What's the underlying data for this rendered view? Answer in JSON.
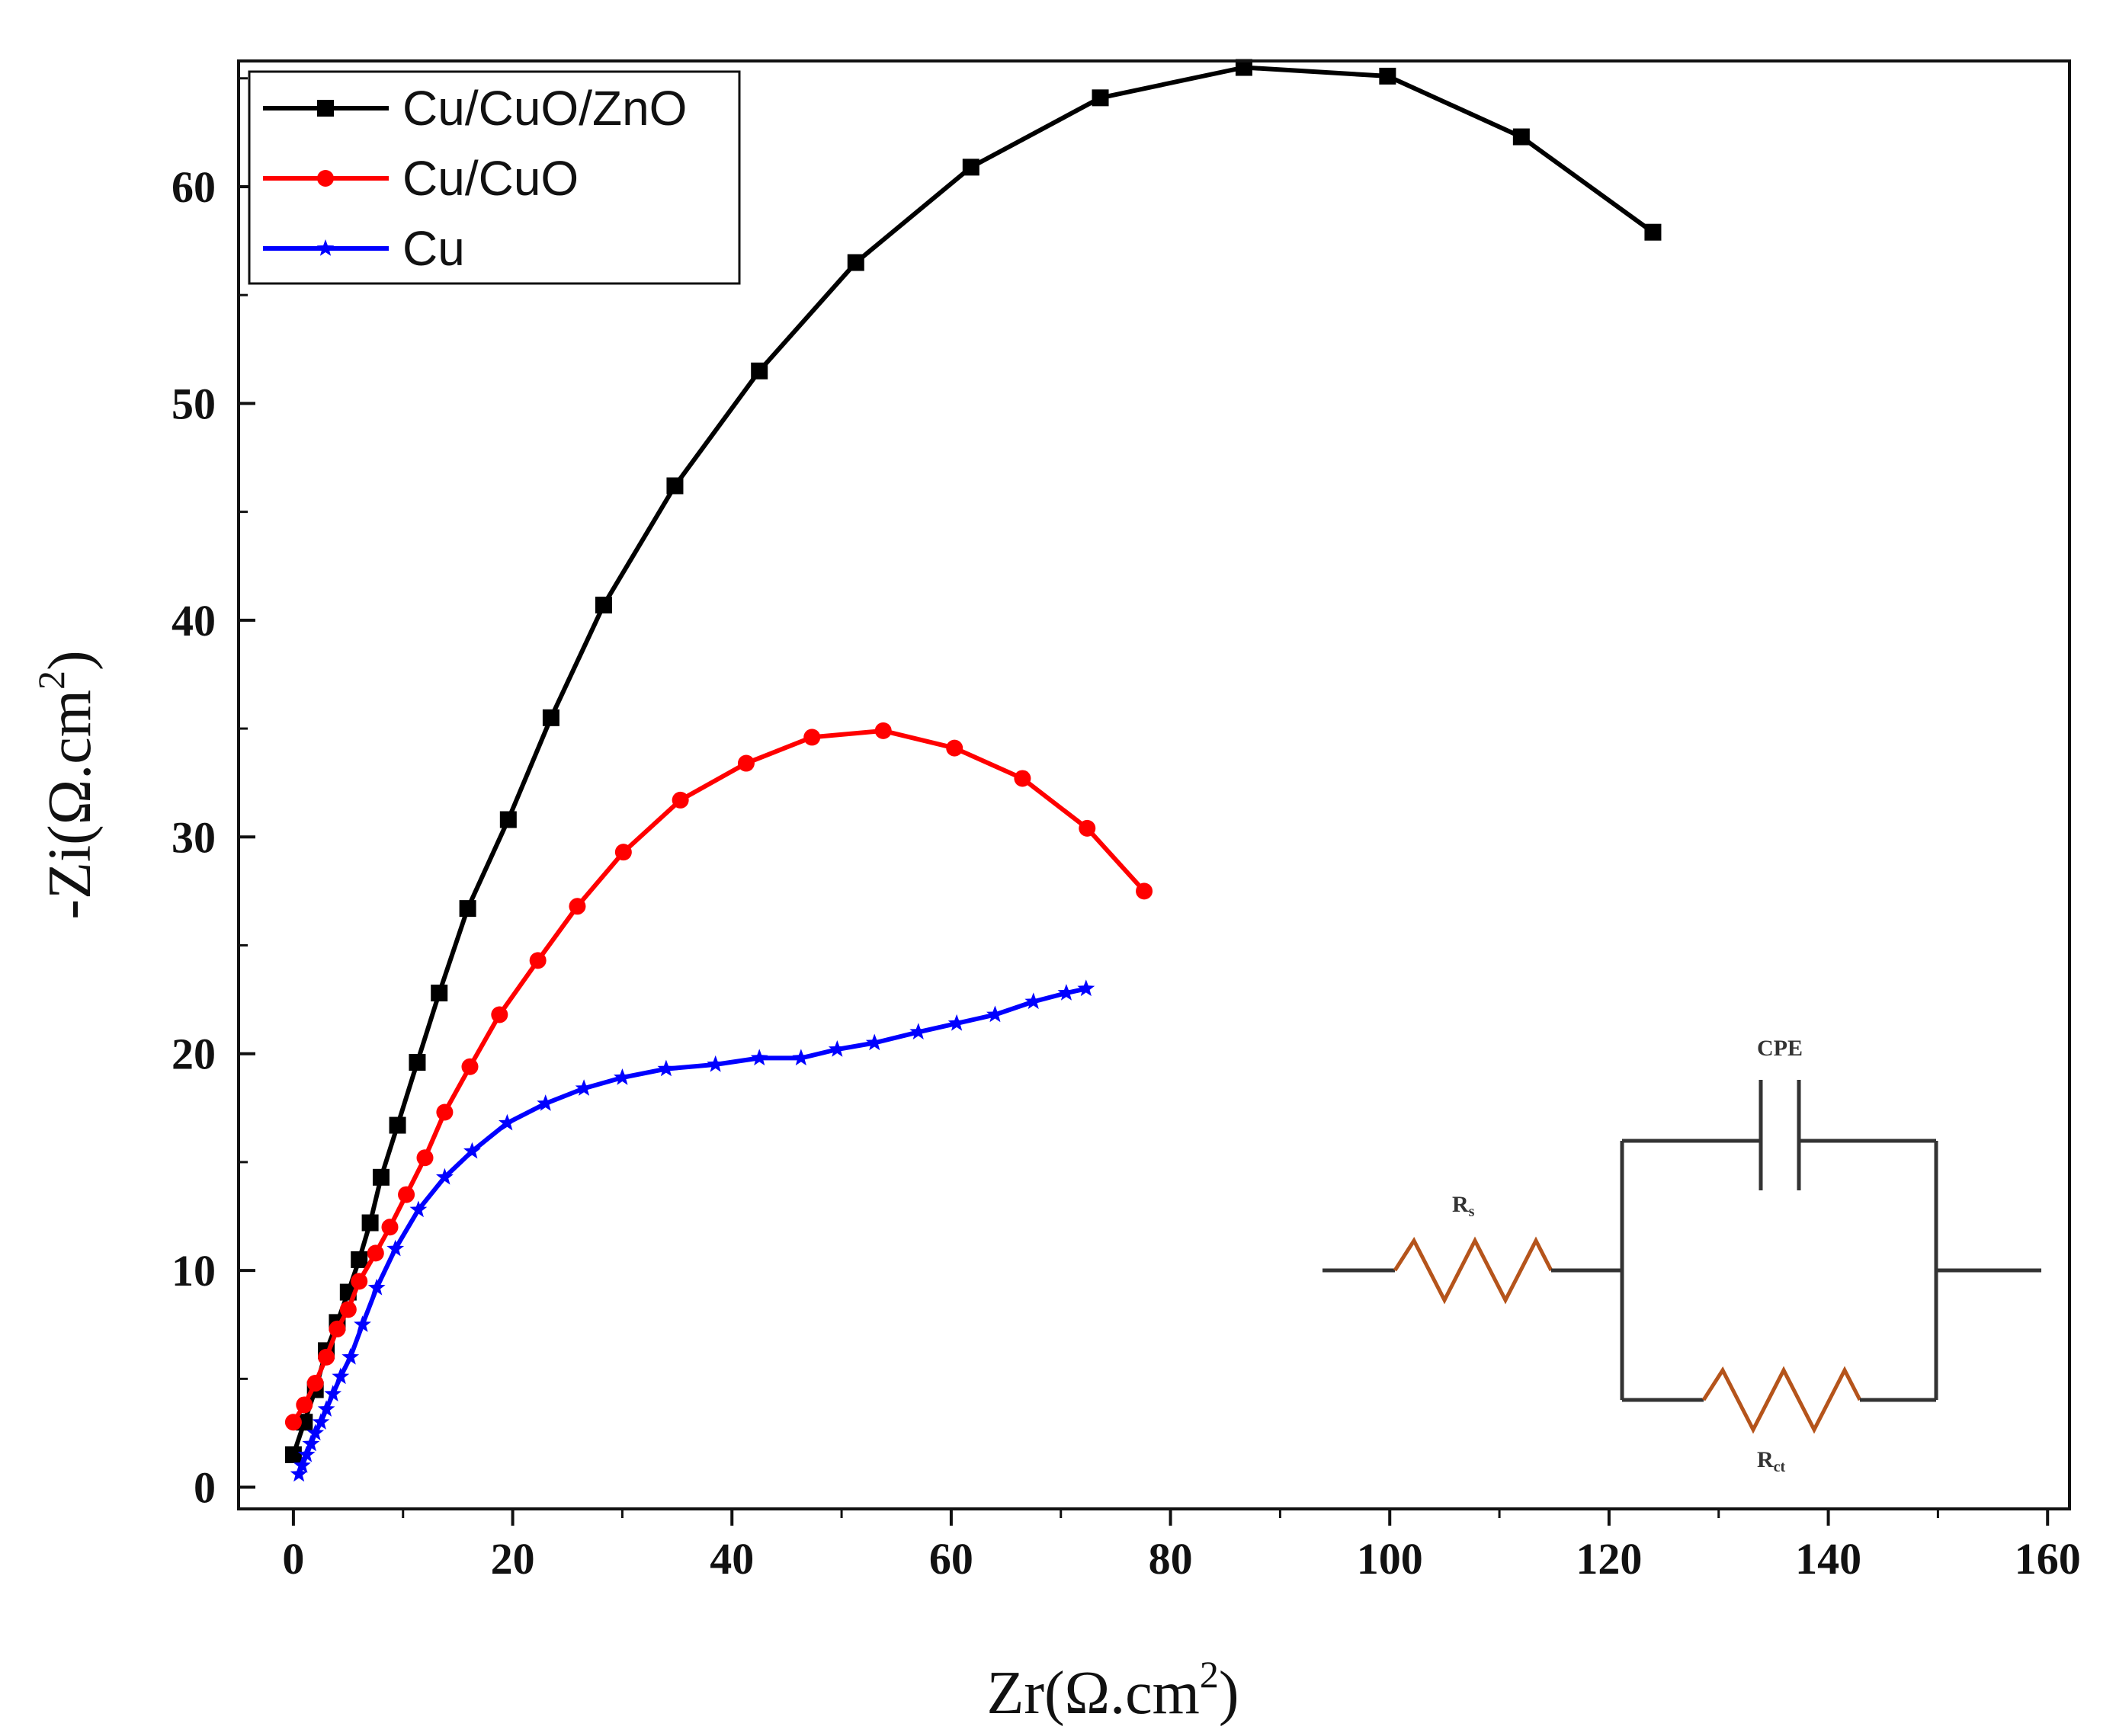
{
  "chart_data": {
    "type": "line",
    "title": "",
    "xlabel": "Zr(Ω.cm",
    "xlabel_sup": "2",
    "xlabel_close": ")",
    "ylabel": "-Zi(Ω.cm",
    "ylabel_sup": "2",
    "ylabel_close": ")",
    "xlim": [
      -5,
      162
    ],
    "ylim": [
      -1,
      65.8
    ],
    "x_ticks": [
      0,
      20,
      40,
      60,
      80,
      100,
      120,
      140,
      160
    ],
    "y_ticks": [
      0,
      10,
      20,
      30,
      40,
      50,
      60
    ],
    "legend_position": "top-left",
    "series": [
      {
        "name": "Cu/CuO/ZnO",
        "color": "#000000",
        "marker": "square",
        "points": [
          [
            0,
            1.5
          ],
          [
            1,
            3
          ],
          [
            2,
            4.5
          ],
          [
            3,
            6.3
          ],
          [
            4,
            7.6
          ],
          [
            5,
            9
          ],
          [
            6,
            10.5
          ],
          [
            7,
            12.2
          ],
          [
            8,
            14.3
          ],
          [
            9.5,
            16.7
          ],
          [
            11.3,
            19.6
          ],
          [
            13.3,
            22.8
          ],
          [
            15.9,
            26.7
          ],
          [
            19.6,
            30.8
          ],
          [
            23.5,
            35.5
          ],
          [
            28.3,
            40.7
          ],
          [
            34.8,
            46.2
          ],
          [
            42.5,
            51.5
          ],
          [
            51.3,
            56.5
          ],
          [
            61.8,
            60.9
          ],
          [
            73.6,
            64.1
          ],
          [
            86.7,
            65.5
          ],
          [
            99.8,
            65.1
          ],
          [
            112,
            62.3
          ],
          [
            124,
            57.9
          ]
        ]
      },
      {
        "name": "Cu/CuO",
        "color": "#ff0000",
        "marker": "circle",
        "points": [
          [
            0,
            3
          ],
          [
            1,
            3.8
          ],
          [
            2,
            4.8
          ],
          [
            3,
            6
          ],
          [
            4,
            7.3
          ],
          [
            5,
            8.2
          ],
          [
            6,
            9.5
          ],
          [
            7.5,
            10.8
          ],
          [
            8.8,
            12
          ],
          [
            10.3,
            13.5
          ],
          [
            12,
            15.2
          ],
          [
            13.8,
            17.3
          ],
          [
            16.1,
            19.4
          ],
          [
            18.8,
            21.8
          ],
          [
            22.3,
            24.3
          ],
          [
            25.9,
            26.8
          ],
          [
            30.1,
            29.3
          ],
          [
            35.3,
            31.7
          ],
          [
            41.3,
            33.4
          ],
          [
            47.3,
            34.6
          ],
          [
            53.8,
            34.9
          ],
          [
            60.3,
            34.1
          ],
          [
            66.5,
            32.7
          ],
          [
            72.4,
            30.4
          ],
          [
            77.6,
            27.5
          ]
        ]
      },
      {
        "name": "Cu",
        "color": "#0000ff",
        "marker": "star",
        "points": [
          [
            0.5,
            0.6
          ],
          [
            0.8,
            1
          ],
          [
            1.2,
            1.5
          ],
          [
            1.6,
            2
          ],
          [
            2,
            2.5
          ],
          [
            2.5,
            3
          ],
          [
            3,
            3.6
          ],
          [
            3.6,
            4.3
          ],
          [
            4.3,
            5.1
          ],
          [
            5.2,
            6
          ],
          [
            6.3,
            7.5
          ],
          [
            7.6,
            9.2
          ],
          [
            9.3,
            11
          ],
          [
            11.4,
            12.8
          ],
          [
            13.8,
            14.3
          ],
          [
            16.3,
            15.5
          ],
          [
            19.5,
            16.8
          ],
          [
            23,
            17.7
          ],
          [
            26.5,
            18.4
          ],
          [
            30,
            18.9
          ],
          [
            34,
            19.3
          ],
          [
            38.5,
            19.5
          ],
          [
            42.5,
            19.8
          ],
          [
            46.3,
            19.8
          ],
          [
            49.6,
            20.2
          ],
          [
            53,
            20.5
          ],
          [
            57,
            21
          ],
          [
            60.5,
            21.4
          ],
          [
            64,
            21.8
          ],
          [
            67.5,
            22.4
          ],
          [
            70.5,
            22.8
          ],
          [
            72.3,
            23
          ]
        ]
      }
    ]
  },
  "circuit": {
    "cpe_label": "CPE",
    "rs_label": "R",
    "rs_sub": "s",
    "rct_label": "R",
    "rct_sub": "ct",
    "resistor_color": "#b5541b",
    "wire_color": "#333333"
  }
}
